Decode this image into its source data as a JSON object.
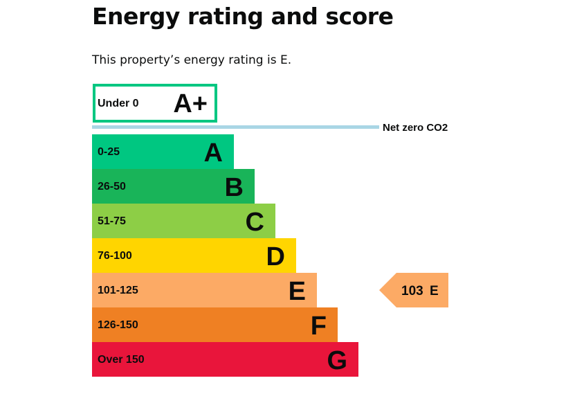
{
  "page": {
    "title": "Energy rating and score",
    "summary": "This property’s energy rating is E."
  },
  "chart_data": {
    "type": "bar",
    "title": "Energy rating and score",
    "subtitle": "This property’s energy rating is E.",
    "bands": [
      {
        "letter": "A+",
        "range": "Under 0",
        "color": "#00c781",
        "outline": true
      },
      {
        "letter": "A",
        "range": "0-25",
        "color": "#00c781",
        "outline": false
      },
      {
        "letter": "B",
        "range": "26-50",
        "color": "#19b459",
        "outline": false
      },
      {
        "letter": "C",
        "range": "51-75",
        "color": "#8dce46",
        "outline": false
      },
      {
        "letter": "D",
        "range": "76-100",
        "color": "#ffd500",
        "outline": false
      },
      {
        "letter": "E",
        "range": "101-125",
        "color": "#fcaa65",
        "outline": false
      },
      {
        "letter": "F",
        "range": "126-150",
        "color": "#ef8023",
        "outline": false
      },
      {
        "letter": "G",
        "range": "Over 150",
        "color": "#e9153b",
        "outline": false
      }
    ],
    "net_zero_label": "Net zero CO2",
    "net_zero_line_color": "#a9d6e5",
    "current": {
      "score": 103,
      "score_label": "103",
      "letter": "E",
      "color": "#fcaa65"
    }
  }
}
